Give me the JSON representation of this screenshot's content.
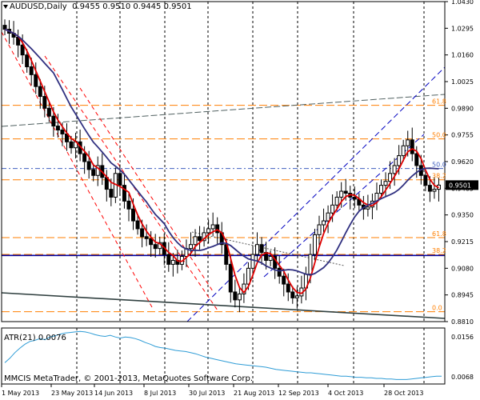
{
  "header": {
    "symbol": "AUDUSD,Daily",
    "ohlc": "0.9455 0.9510 0.9445 0.9501"
  },
  "indicator": {
    "label": "ATR(21) 0.0076",
    "scale_top": "0.0156",
    "scale_bottom": "0.0068"
  },
  "copyright": "MMCIS MetaTrader, © 2001-2013, MetaQuotes Software Corp.",
  "price_badge": "0.9501",
  "colors": {
    "candle": "#000000",
    "ma_fast": "#e00000",
    "ma_slow": "#303080",
    "fib_line": "#ff7f00",
    "channel_red": "#ff0000",
    "channel_blue": "#0000c0",
    "support": "#0000a0",
    "atr": "#2e9cd6"
  },
  "chart_data": {
    "type": "line",
    "ylim": [
      0.881,
      1.043
    ],
    "y_ticks": [
      "1.0430",
      "1.0295",
      "1.0160",
      "1.0025",
      "0.9890",
      "0.9755",
      "0.9620",
      "0.9485",
      "0.9350",
      "0.9215",
      "0.9080",
      "0.8945",
      "0.8810"
    ],
    "x_ticks": [
      "1 May 2013",
      "23 May 2013",
      "14 Jun 2013",
      "8 Jul 2013",
      "30 Jul 2013",
      "21 Aug 2013",
      "12 Sep 2013",
      "4 Oct 2013",
      "28 Oct 2013"
    ],
    "fib_upper": [
      {
        "label": "61.8",
        "value": 0.9905
      },
      {
        "label": "50.0",
        "value": 0.9735
      },
      {
        "label": "50.0",
        "value": 0.9585
      },
      {
        "label": "38.2",
        "value": 0.9528
      }
    ],
    "fib_lower": [
      {
        "label": "61.8",
        "value": 0.9235
      },
      {
        "label": "38.2",
        "value": 0.915
      },
      {
        "label": "0.0",
        "value": 0.886
      }
    ],
    "support_level": 0.9145,
    "price_series": [
      1.029,
      1.027,
      1.025,
      1.021,
      1.016,
      1.01,
      1.006,
      1.0,
      0.995,
      0.989,
      0.985,
      0.98,
      0.978,
      0.976,
      0.972,
      0.969,
      0.972,
      0.966,
      0.962,
      0.958,
      0.955,
      0.96,
      0.954,
      0.948,
      0.944,
      0.956,
      0.95,
      0.942,
      0.938,
      0.932,
      0.928,
      0.924,
      0.923,
      0.92,
      0.918,
      0.921,
      0.915,
      0.91,
      0.912,
      0.91,
      0.914,
      0.918,
      0.92,
      0.924,
      0.922,
      0.926,
      0.928,
      0.93,
      0.926,
      0.92,
      0.91,
      0.896,
      0.892,
      0.895,
      0.9,
      0.908,
      0.915,
      0.92,
      0.916,
      0.912,
      0.914,
      0.908,
      0.904,
      0.9,
      0.896,
      0.893,
      0.894,
      0.898,
      0.905,
      0.915,
      0.925,
      0.93,
      0.932,
      0.936,
      0.94,
      0.944,
      0.947,
      0.946,
      0.944,
      0.943,
      0.94,
      0.938,
      0.939,
      0.942,
      0.946,
      0.95,
      0.952,
      0.956,
      0.96,
      0.965,
      0.97,
      0.973,
      0.966,
      0.96,
      0.955,
      0.95,
      0.947,
      0.948,
      0.9501
    ],
    "atr_series": [
      0.01,
      0.0108,
      0.0118,
      0.0126,
      0.0133,
      0.0138,
      0.014,
      0.0143,
      0.0141,
      0.0146,
      0.0148,
      0.0151,
      0.0153,
      0.0154,
      0.0155,
      0.0156,
      0.0155,
      0.0153,
      0.015,
      0.0148,
      0.0147,
      0.0149,
      0.0146,
      0.0144,
      0.0146,
      0.0145,
      0.0143,
      0.014,
      0.0136,
      0.0133,
      0.0129,
      0.0127,
      0.0126,
      0.0124,
      0.0122,
      0.0121,
      0.012,
      0.0118,
      0.0116,
      0.0113,
      0.011,
      0.0108,
      0.0106,
      0.0104,
      0.0102,
      0.01,
      0.0098,
      0.0097,
      0.0096,
      0.0095,
      0.0094,
      0.0093,
      0.0092,
      0.009,
      0.0088,
      0.0087,
      0.0086,
      0.0085,
      0.0084,
      0.0083,
      0.0082,
      0.0082,
      0.0081,
      0.008,
      0.0079,
      0.0078,
      0.0077,
      0.0076,
      0.0076,
      0.0075,
      0.0074,
      0.0074,
      0.0073,
      0.0073,
      0.0072,
      0.0072,
      0.0071,
      0.0071,
      0.007,
      0.007,
      0.007,
      0.0071,
      0.0072,
      0.0073,
      0.0074,
      0.0075,
      0.0076,
      0.0076
    ]
  }
}
